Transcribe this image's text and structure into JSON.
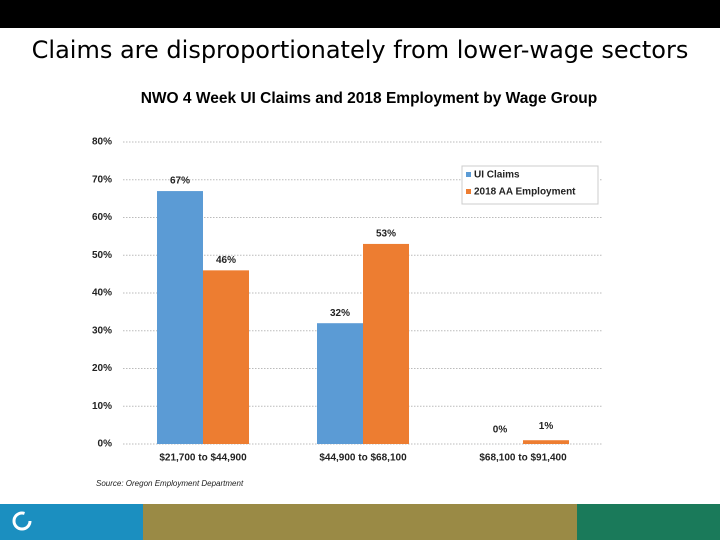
{
  "slide_title": "Claims are disproportionately from lower-wage sectors",
  "chart_data": {
    "type": "bar",
    "title": "NWO 4 Week UI Claims and 2018 Employment by Wage Group",
    "categories": [
      "$21,700 to $44,900",
      "$44,900 to $68,100",
      "$68,100 to $91,400"
    ],
    "series": [
      {
        "name": "UI Claims",
        "color": "#5b9bd5",
        "values": [
          67,
          32,
          0
        ],
        "value_labels": [
          "67%",
          "32%",
          "0%"
        ]
      },
      {
        "name": "2018 AA Employment",
        "color": "#ed7d31",
        "values": [
          46,
          53,
          1
        ],
        "value_labels": [
          "46%",
          "53%",
          "1%"
        ]
      }
    ],
    "ylim": [
      0,
      80
    ],
    "yticks": [
      {
        "value": 0,
        "label": "0%"
      },
      {
        "value": 10,
        "label": "10%"
      },
      {
        "value": 20,
        "label": "20%"
      },
      {
        "value": 30,
        "label": "30%"
      },
      {
        "value": 40,
        "label": "40%"
      },
      {
        "value": 50,
        "label": "50%"
      },
      {
        "value": 60,
        "label": "60%"
      },
      {
        "value": 70,
        "label": "70%"
      },
      {
        "value": 80,
        "label": "80%"
      }
    ],
    "grid": true,
    "legend": "upper right",
    "source": "Source: Oregon Employment Department"
  }
}
